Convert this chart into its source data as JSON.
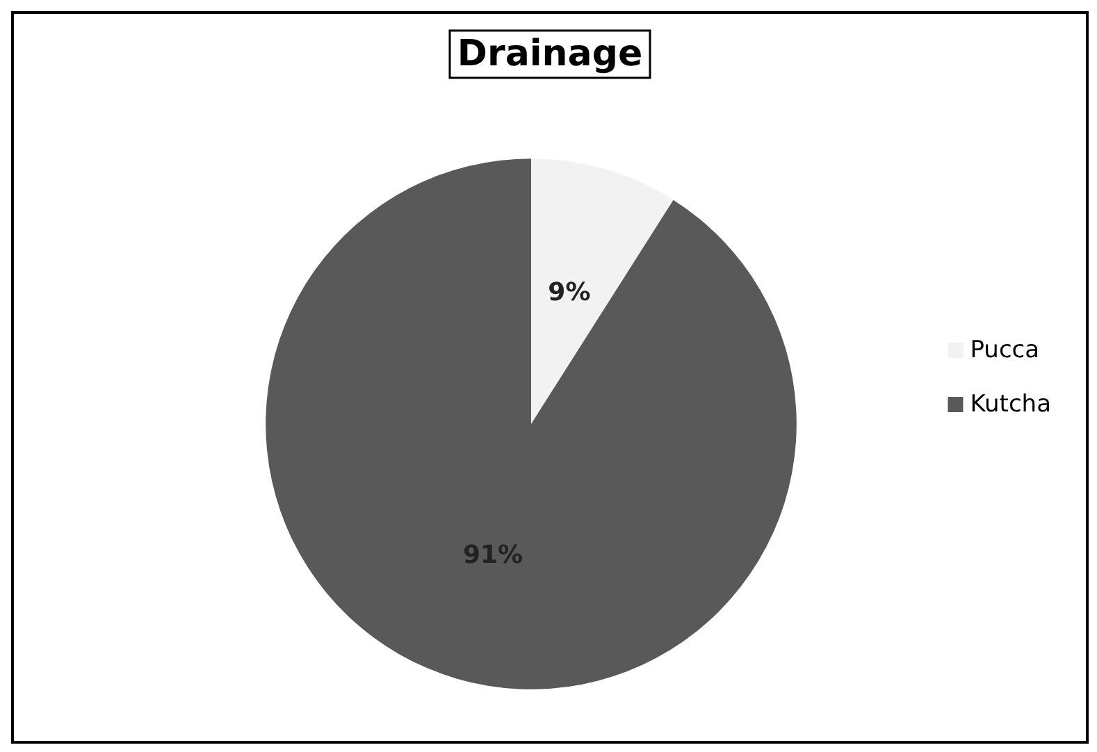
{
  "chart_data": {
    "type": "pie",
    "title": "Drainage",
    "categories": [
      "Pucca",
      "Kutcha"
    ],
    "values": [
      9,
      91
    ],
    "colors": [
      "#f2f2f2",
      "#595959"
    ],
    "value_labels": [
      "9%",
      "91%"
    ],
    "legend": "right"
  }
}
